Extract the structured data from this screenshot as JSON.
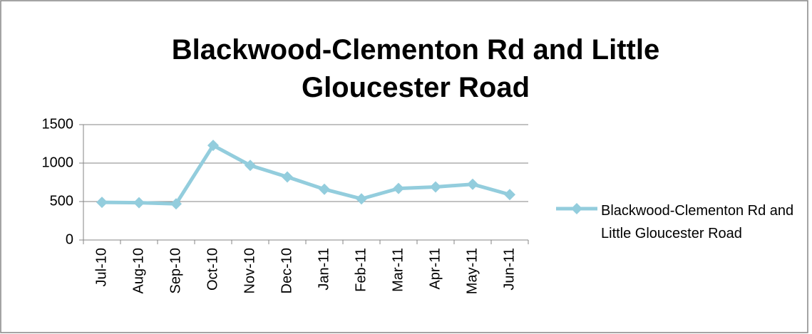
{
  "chart_data": {
    "type": "line",
    "title": "Blackwood-Clementon Rd and Little Gloucester Road",
    "categories": [
      "Jul-10",
      "Aug-10",
      "Sep-10",
      "Oct-10",
      "Nov-10",
      "Dec-10",
      "Jan-11",
      "Feb-11",
      "Mar-11",
      "Apr-11",
      "May-11",
      "Jun-11"
    ],
    "series": [
      {
        "name": "Blackwood-Clementon Rd and Little Gloucester Road",
        "color": "#93cddd",
        "values": [
          490,
          485,
          470,
          1230,
          970,
          820,
          660,
          535,
          670,
          690,
          725,
          590
        ]
      }
    ],
    "ylim": [
      0,
      1500
    ],
    "yticks": [
      0,
      500,
      1000,
      1500
    ],
    "grid": true,
    "legend": "right"
  }
}
